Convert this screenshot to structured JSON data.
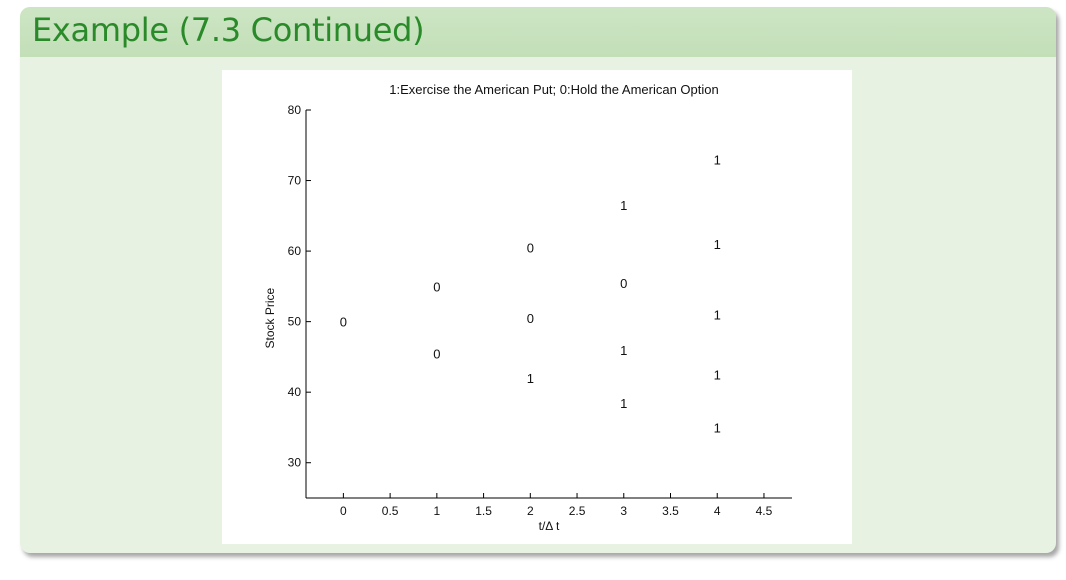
{
  "slide": {
    "title": "Example (7.3 Continued)"
  },
  "chart_data": {
    "type": "scatter",
    "title": "1:Exercise the American Put; 0:Hold the American Option",
    "xlabel": "t/Δ t",
    "ylabel": "Stock Price",
    "xlim": [
      -0.4,
      4.8
    ],
    "ylim": [
      25,
      80
    ],
    "xticks": [
      0,
      0.5,
      1,
      1.5,
      2,
      2.5,
      3,
      3.5,
      4,
      4.5
    ],
    "xtick_labels": [
      "0",
      "0.5",
      "1",
      "1.5",
      "2",
      "2.5",
      "3",
      "3.5",
      "4",
      "4.5"
    ],
    "yticks": [
      30,
      40,
      50,
      60,
      70,
      80
    ],
    "ytick_labels": [
      "30",
      "40",
      "50",
      "60",
      "70",
      "80"
    ],
    "points": [
      {
        "x": 0,
        "y": 50,
        "label": "0"
      },
      {
        "x": 1,
        "y": 55,
        "label": "0"
      },
      {
        "x": 1,
        "y": 45.5,
        "label": "0"
      },
      {
        "x": 2,
        "y": 60.5,
        "label": "0"
      },
      {
        "x": 2,
        "y": 50.5,
        "label": "0"
      },
      {
        "x": 2,
        "y": 42,
        "label": "1"
      },
      {
        "x": 3,
        "y": 66.5,
        "label": "1"
      },
      {
        "x": 3,
        "y": 55.5,
        "label": "0"
      },
      {
        "x": 3,
        "y": 46,
        "label": "1"
      },
      {
        "x": 3,
        "y": 38.5,
        "label": "1"
      },
      {
        "x": 4,
        "y": 73,
        "label": "1"
      },
      {
        "x": 4,
        "y": 61,
        "label": "1"
      },
      {
        "x": 4,
        "y": 51,
        "label": "1"
      },
      {
        "x": 4,
        "y": 42.5,
        "label": "1"
      },
      {
        "x": 4,
        "y": 35,
        "label": "1"
      }
    ],
    "grid": false
  }
}
